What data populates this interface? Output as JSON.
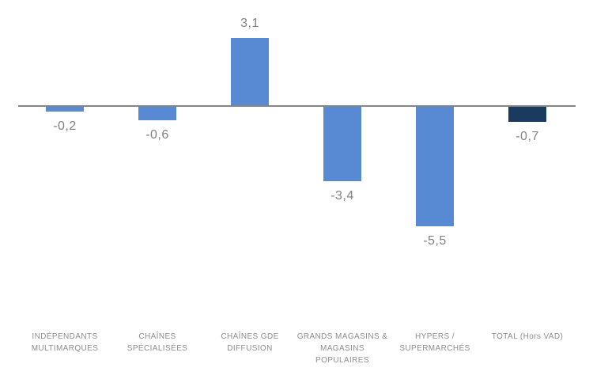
{
  "chart_data": {
    "type": "bar",
    "categories": [
      "INDÉPENDANTS MULTIMARQUES",
      "CHAÎNES SPÉCIALISÉES",
      "CHAÎNES GDE DIFFUSION",
      "GRANDS MAGASINS & MAGASINS POPULAIRES",
      "HYPERS / SUPERMARCHÉS",
      "TOTAL (Hors VAD)"
    ],
    "values": [
      -0.2,
      -0.6,
      3.1,
      -3.4,
      -5.5,
      -0.7
    ],
    "value_labels": [
      "-0,2",
      "-0,6",
      "3,1",
      "-3,4",
      "-5,5",
      "-0,7"
    ],
    "title": "",
    "xlabel": "",
    "ylabel": "",
    "ylim": [
      -5.5,
      3.1
    ],
    "grid": false,
    "legend": false,
    "bar_colors": [
      "#578ad2",
      "#578ad2",
      "#578ad2",
      "#578ad2",
      "#578ad2",
      "#1b3a5f"
    ],
    "colors": {
      "bar_default": "#578ad2",
      "bar_total": "#1b3a5f",
      "axis_line": "#858585",
      "value_label": "#808080",
      "category_label": "#8c8c8c",
      "background": "#ffffff"
    }
  }
}
